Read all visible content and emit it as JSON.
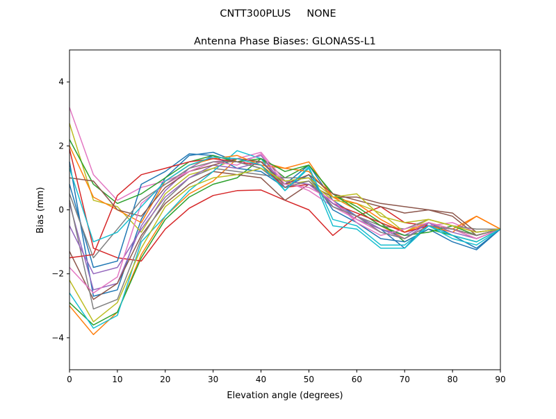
{
  "chart_data": {
    "type": "line",
    "suptitle": "CNTT300PLUS     NONE",
    "title": "Antenna Phase Biases: GLONASS-L1",
    "xlabel": "Elevation angle (degrees)",
    "ylabel": "Bias (mm)",
    "xlim": [
      0,
      90
    ],
    "ylim": [
      -5,
      5
    ],
    "xticks": [
      0,
      10,
      20,
      30,
      40,
      50,
      60,
      70,
      80,
      90
    ],
    "yticks": [
      -4,
      -2,
      0,
      2,
      4
    ],
    "grid": false,
    "x": [
      0,
      5,
      10,
      15,
      20,
      25,
      30,
      35,
      40,
      45,
      50,
      55,
      60,
      65,
      70,
      75,
      80,
      85,
      90
    ],
    "colors": [
      "#1f77b4",
      "#ff7f0e",
      "#2ca02c",
      "#d62728",
      "#9467bd",
      "#8c564b",
      "#e377c2",
      "#7f7f7f",
      "#bcbd22",
      "#17becf"
    ],
    "series": [
      {
        "values": [
          1.5,
          -2.7,
          -2.5,
          -0.3,
          1.0,
          1.7,
          1.8,
          1.5,
          1.3,
          0.8,
          1.4,
          0.3,
          -0.2,
          -0.6,
          -1.2,
          -0.4,
          -0.8,
          -1.2,
          -0.6
        ]
      },
      {
        "values": [
          -3.0,
          -3.9,
          -3.2,
          -1.4,
          -0.2,
          0.5,
          0.9,
          1.6,
          1.5,
          1.3,
          1.5,
          0.4,
          0.0,
          -0.5,
          -0.9,
          -0.5,
          -0.7,
          -0.2,
          -0.6
        ]
      },
      {
        "values": [
          -2.9,
          -3.6,
          -3.2,
          -1.5,
          -0.3,
          0.4,
          0.8,
          1.0,
          1.6,
          1.0,
          1.4,
          0.5,
          0.1,
          -0.4,
          -1.0,
          -0.6,
          -0.8,
          -1.0,
          -0.6
        ]
      },
      {
        "values": [
          1.9,
          -1.2,
          -1.5,
          -1.6,
          -0.6,
          0.05,
          0.45,
          0.6,
          0.62,
          0.3,
          0.0,
          -0.8,
          -0.2,
          0.1,
          -0.4,
          -0.5,
          -0.6,
          -0.9,
          -0.6
        ]
      },
      {
        "values": [
          0.2,
          -2.5,
          -2.3,
          -0.5,
          0.6,
          1.3,
          1.7,
          1.5,
          1.7,
          0.7,
          0.9,
          0.2,
          -0.3,
          -0.6,
          -0.8,
          -0.4,
          -0.6,
          -0.8,
          -0.6
        ]
      },
      {
        "values": [
          -1.3,
          -2.8,
          -2.3,
          -0.8,
          0.2,
          0.8,
          1.2,
          1.1,
          1.0,
          0.3,
          0.8,
          0.4,
          0.4,
          0.2,
          0.1,
          0.0,
          -0.2,
          -0.8,
          -0.6
        ]
      },
      {
        "values": [
          3.2,
          1.1,
          0.3,
          0.7,
          0.9,
          1.2,
          1.5,
          1.6,
          1.8,
          0.9,
          0.6,
          0.1,
          -0.3,
          -0.7,
          -0.9,
          -0.5,
          -0.4,
          -0.7,
          -0.6
        ]
      },
      {
        "values": [
          0.3,
          -3.1,
          -2.8,
          -0.9,
          0.3,
          1.0,
          1.3,
          1.2,
          1.1,
          1.0,
          1.0,
          0.1,
          -0.2,
          -0.5,
          -0.6,
          -0.3,
          -0.5,
          -0.6,
          -0.6
        ]
      },
      {
        "values": [
          2.7,
          0.3,
          0.1,
          -0.7,
          0.5,
          1.1,
          1.3,
          1.6,
          1.4,
          0.8,
          0.9,
          0.3,
          0.2,
          -0.1,
          -0.7,
          -0.3,
          -0.5,
          -0.7,
          -0.6
        ]
      },
      {
        "values": [
          -2.6,
          -3.7,
          -3.3,
          -1.0,
          -0.2,
          0.6,
          1.2,
          1.85,
          1.6,
          0.6,
          1.3,
          -0.5,
          -0.6,
          -1.2,
          -1.2,
          -0.5,
          -0.9,
          -1.1,
          -0.6
        ]
      },
      {
        "values": [
          0.8,
          -1.8,
          -1.6,
          0.8,
          1.2,
          1.75,
          1.7,
          1.3,
          1.2,
          0.7,
          1.1,
          0.0,
          -0.4,
          -0.9,
          -1.0,
          -0.6,
          -1.0,
          -1.25,
          -0.6
        ]
      },
      {
        "values": [
          2.0,
          0.4,
          0.0,
          -0.4,
          0.9,
          1.4,
          1.6,
          1.7,
          1.4,
          1.3,
          1.2,
          0.4,
          0.2,
          -0.3,
          -0.7,
          -0.4,
          -0.6,
          -0.2,
          -0.6
        ]
      },
      {
        "values": [
          2.2,
          0.8,
          0.2,
          0.5,
          1.0,
          1.5,
          1.7,
          1.5,
          1.6,
          1.2,
          1.4,
          0.5,
          0.0,
          -0.5,
          -0.8,
          -0.7,
          -0.5,
          -0.8,
          -0.6
        ]
      },
      {
        "values": [
          -1.5,
          -1.4,
          0.45,
          1.1,
          1.3,
          1.5,
          1.6,
          1.5,
          1.4,
          0.7,
          0.8,
          0.2,
          -0.1,
          -0.4,
          -0.7,
          -0.5,
          -0.6,
          -0.8,
          -0.6
        ]
      },
      {
        "values": [
          -0.5,
          -2.0,
          -1.8,
          -0.6,
          0.4,
          1.0,
          1.4,
          1.3,
          1.5,
          0.9,
          0.8,
          0.2,
          -0.2,
          -0.6,
          -0.9,
          -0.4,
          -0.7,
          -0.9,
          -0.6
        ]
      },
      {
        "values": [
          1.0,
          0.9,
          0.0,
          -0.2,
          0.7,
          1.2,
          1.4,
          1.6,
          1.5,
          0.8,
          1.1,
          0.5,
          0.3,
          0.1,
          -0.1,
          0.0,
          -0.1,
          -0.7,
          -0.6
        ]
      },
      {
        "values": [
          -1.8,
          -2.6,
          -2.1,
          0.2,
          0.8,
          1.2,
          1.5,
          1.4,
          1.75,
          0.8,
          0.7,
          0.3,
          -0.4,
          -0.8,
          -0.6,
          -0.4,
          -0.6,
          -0.9,
          -0.6
        ]
      },
      {
        "values": [
          0.5,
          -1.5,
          -0.6,
          0.3,
          0.8,
          1.3,
          1.5,
          1.5,
          1.3,
          0.7,
          0.9,
          0.1,
          -0.2,
          -0.7,
          -0.9,
          -0.5,
          -0.6,
          -0.8,
          -0.6
        ]
      },
      {
        "values": [
          -2.2,
          -3.5,
          -2.9,
          -1.2,
          0.1,
          0.7,
          1.0,
          1.1,
          1.3,
          0.9,
          1.0,
          0.4,
          0.5,
          -0.2,
          -0.4,
          -0.3,
          -0.5,
          -0.7,
          -0.6
        ]
      },
      {
        "values": [
          1.3,
          -1.0,
          -0.7,
          0.1,
          0.9,
          1.4,
          1.65,
          1.6,
          1.4,
          0.6,
          1.35,
          -0.3,
          -0.5,
          -1.1,
          -1.1,
          -0.5,
          -0.8,
          -1.0,
          -0.6
        ]
      }
    ]
  }
}
